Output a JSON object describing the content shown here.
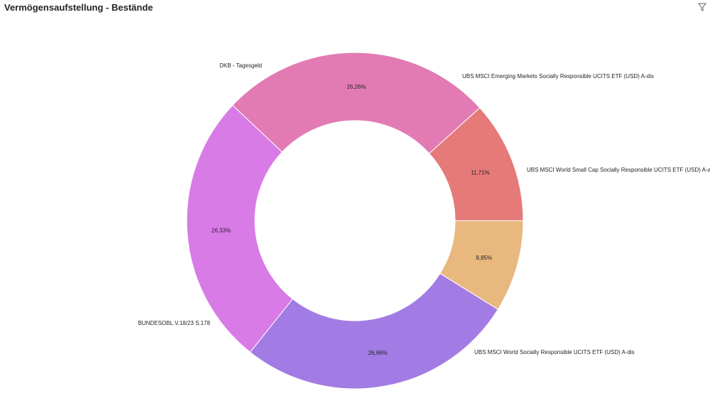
{
  "header": {
    "title": "Vermögensaufstellung - Bestände",
    "filter_icon": "filter-icon"
  },
  "chart_data": {
    "type": "pie",
    "donut": true,
    "title": "Vermögensaufstellung - Bestände",
    "series": [
      {
        "name": "UBS MSCI World Small Cap Socially Responsible UCITS ETF (USD) A-acc",
        "value": 8.85,
        "label": "8,85%",
        "color": "#E8B87E"
      },
      {
        "name": "UBS MSCI World Socially Responsible UCITS ETF (USD) A-dis",
        "value": 26.86,
        "label": "26,86%",
        "color": "#A27CE4"
      },
      {
        "name": "BUNDESOBL.V.18/23 S.178",
        "value": 26.33,
        "label": "26,33%",
        "color": "#D87BE6"
      },
      {
        "name": "DKB - Tagesgeld",
        "value": 26.26,
        "label": "26,26%",
        "color": "#E27BB3"
      },
      {
        "name": "UBS MSCI Emerging Markets Socially Responsible UCITS ETF (USD) A-dis",
        "value": 11.71,
        "label": "11,71%",
        "color": "#E57A79"
      }
    ]
  }
}
